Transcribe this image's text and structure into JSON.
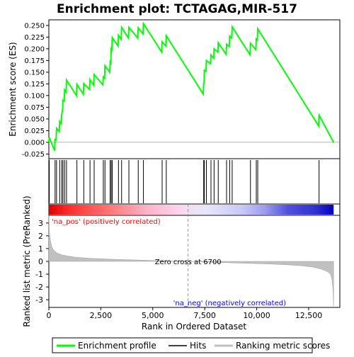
{
  "chart_data": {
    "type": "line",
    "title": "Enrichment plot: TCTAGAG,MIR-517",
    "ylabel_top": "Enrichment score (ES)",
    "ylabel_bottom": "Ranked list metric (PreRanked)",
    "xlabel": "Rank in Ordered Dataset",
    "x_ticks": [
      0,
      2500,
      5000,
      7500,
      10000,
      12500
    ],
    "x_tick_labels": [
      "0",
      "2,500",
      "5,000",
      "7,500",
      "10,000",
      "12,500"
    ],
    "es_y_ticks": [
      -0.025,
      0.0,
      0.025,
      0.05,
      0.075,
      0.1,
      0.125,
      0.15,
      0.175,
      0.2,
      0.225,
      0.25
    ],
    "es_y_tick_labels": [
      "-0.025",
      "0.000",
      "0.025",
      "0.050",
      "0.075",
      "0.100",
      "0.125",
      "0.150",
      "0.175",
      "0.200",
      "0.225",
      "0.250"
    ],
    "es_ylim": [
      -0.035,
      0.262
    ],
    "metric_y_ticks": [
      -3,
      -2,
      -1,
      0,
      1,
      2,
      3
    ],
    "metric_y_tick_labels": [
      "-3",
      "-2",
      "-1",
      "0",
      "1",
      "2",
      "3"
    ],
    "metric_ylim": [
      -3.6,
      3.6
    ],
    "xlim": [
      0,
      14000
    ],
    "n_genes": 13700,
    "zero_cross": 6700,
    "zero_cross_label": "Zero cross at 6700",
    "pos_label": "'na_pos' (positively correlated)",
    "neg_label": "'na_neg' (negatively correlated)",
    "legend": {
      "enrichment": "Enrichment profile",
      "hits": "Hits",
      "ranking": "Ranking metric scores"
    },
    "colors": {
      "es_line": "#00ff00",
      "hits": "#000000",
      "pos_text": "#ff0000",
      "neg_text": "#0000ff",
      "metric_fill": "#c0c0c0",
      "zero_line": "#808080"
    },
    "hits": [
      20,
      300,
      370,
      520,
      620,
      680,
      760,
      850,
      1350,
      1680,
      1980,
      2180,
      2620,
      2700,
      2950,
      3000,
      3050,
      3350,
      3500,
      3850,
      4300,
      4550,
      5450,
      5650,
      7450,
      7480,
      7580,
      7800,
      7950,
      8150,
      8550,
      8700,
      8820,
      9700,
      9980,
      10050,
      13000
    ],
    "es_series": {
      "name": "Enrichment profile",
      "x": [
        0,
        20,
        280,
        300,
        350,
        370,
        500,
        520,
        600,
        620,
        660,
        680,
        740,
        760,
        830,
        850,
        1330,
        1350,
        1660,
        1680,
        1960,
        1980,
        2160,
        2180,
        2600,
        2620,
        2680,
        2700,
        2930,
        2950,
        2980,
        3000,
        3030,
        3050,
        3330,
        3350,
        3480,
        3500,
        3830,
        3850,
        4280,
        4300,
        4530,
        4550,
        5430,
        5450,
        5630,
        5650,
        7430,
        7450,
        7470,
        7480,
        7560,
        7580,
        7780,
        7800,
        7930,
        7950,
        8130,
        8150,
        8530,
        8550,
        8680,
        8700,
        8800,
        8820,
        9680,
        9700,
        9960,
        9980,
        10030,
        10050,
        12980,
        13000,
        13700
      ],
      "values": [
        0.0,
        0.01,
        -0.018,
        0.008,
        0.003,
        0.03,
        0.023,
        0.045,
        0.04,
        0.06,
        0.07,
        0.09,
        0.088,
        0.112,
        0.107,
        0.133,
        0.1,
        0.124,
        0.103,
        0.126,
        0.113,
        0.134,
        0.122,
        0.145,
        0.123,
        0.14,
        0.137,
        0.164,
        0.15,
        0.172,
        0.17,
        0.2,
        0.198,
        0.224,
        0.206,
        0.229,
        0.22,
        0.246,
        0.223,
        0.246,
        0.223,
        0.245,
        0.232,
        0.254,
        0.193,
        0.215,
        0.206,
        0.228,
        0.103,
        0.128,
        0.126,
        0.154,
        0.152,
        0.175,
        0.168,
        0.187,
        0.18,
        0.2,
        0.193,
        0.213,
        0.188,
        0.21,
        0.205,
        0.227,
        0.223,
        0.247,
        0.187,
        0.212,
        0.198,
        0.221,
        0.219,
        0.243,
        0.035,
        0.058,
        0.0
      ]
    },
    "metric_series": {
      "name": "Ranking metric scores",
      "x": [
        0,
        30,
        80,
        150,
        250,
        400,
        600,
        900,
        1300,
        2000,
        3000,
        4000,
        5000,
        6000,
        6700,
        7500,
        8500,
        9500,
        10500,
        11500,
        12200,
        12700,
        13100,
        13400,
        13550,
        13620,
        13670,
        13700
      ],
      "values": [
        3.6,
        2.2,
        1.6,
        1.1,
        0.85,
        0.65,
        0.52,
        0.42,
        0.32,
        0.24,
        0.17,
        0.12,
        0.07,
        0.03,
        0.0,
        -0.05,
        -0.1,
        -0.15,
        -0.2,
        -0.27,
        -0.35,
        -0.45,
        -0.6,
        -0.8,
        -1.0,
        -1.4,
        -2.2,
        -3.5
      ]
    }
  }
}
